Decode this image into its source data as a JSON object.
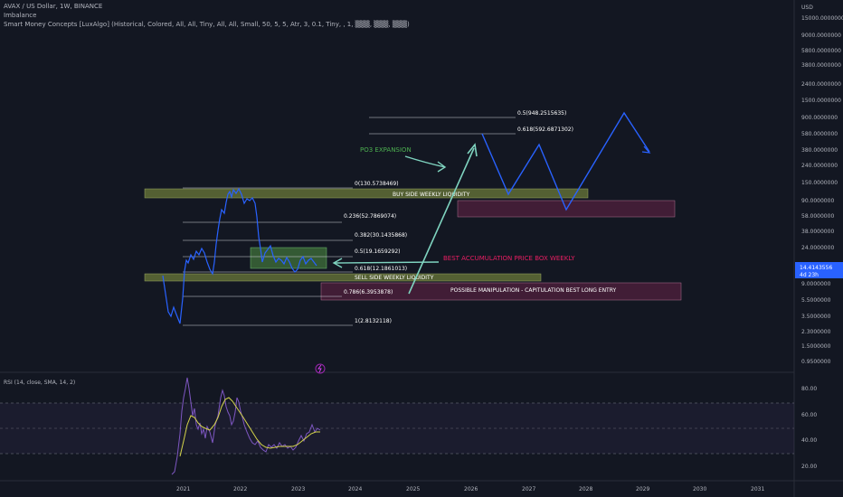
{
  "header": {
    "symbol_line": "AVAX / US Dollar, 1W, BINANCE",
    "indicator1": "Imbalance",
    "indicator2": "Smart Money Concepts [LuxAlgo] (Historical, Colored, All, All, Tiny, All, All, Small, 50, 5, 5, Atr, 3, 0.1, Tiny, , 1, ▒▒▒, ▒▒▒, ▒▒▒)"
  },
  "price_axis": {
    "currency": "USD",
    "ticks": [
      "15000.0000000",
      "9000.0000000",
      "5800.0000000",
      "3800.0000000",
      "2400.0000000",
      "1500.0000000",
      "900.0000000",
      "580.0000000",
      "380.0000000",
      "240.0000000",
      "150.0000000",
      "90.0000000",
      "58.0000000",
      "38.0000000",
      "24.0000000",
      "14.4143556",
      "9.0000000",
      "5.5000000",
      "3.5000000",
      "2.3000000",
      "1.5000000",
      "0.9500000"
    ],
    "current_price": "14.4143556",
    "countdown": "4d 23h"
  },
  "rsi": {
    "label": "RSI (14, close, SMA, 14, 2)",
    "ticks": [
      "80.00",
      "60.00",
      "40.00",
      "20.00"
    ]
  },
  "time_axis": {
    "labels": [
      "2021",
      "2022",
      "2023",
      "2024",
      "2025",
      "2026",
      "2027",
      "2028",
      "2029",
      "2030",
      "2031"
    ]
  },
  "fib": [
    {
      "label": "0(130.5738469)"
    },
    {
      "label": "0.236(52.7869074)"
    },
    {
      "label": "0.382(30.1435868)"
    },
    {
      "label": "0.5(19.1659292)"
    },
    {
      "label": "0.618(12.1861013)"
    },
    {
      "label": "0.786(6.3953878)"
    },
    {
      "label": "1(2.8132118)"
    }
  ],
  "projection_fib": [
    {
      "label": "0.5(948.2515635)"
    },
    {
      "label": "0.618(592.6871302)"
    }
  ],
  "annotations": {
    "buy_side": "BUY SIDE WEEKLY LIQUIDITY",
    "sell_side": "SELL SIDE WEEKLY LIQUIDITY",
    "manipulation": "POSSIBLE MANIPULATION - CAPITULATION BEST LONG ENTRY",
    "po3": "PO3 EXPANSION",
    "best_box": "BEST ACCUMULATION PRICE BOX WEEKLY"
  },
  "colors": {
    "background": "#131722",
    "price_line": "#2962ff",
    "rsi_line": "#7e57c2",
    "rsi_ma": "#d4d44a",
    "liquidity_zone": "#6b7a3a",
    "manipulation_zone": "#4a1f3a",
    "accumulation_box": "#3d6b3a",
    "po3_text": "#4caf50",
    "best_box_text": "#e91e63",
    "arrow": "#7fd4c0",
    "price_tag": "#2962ff"
  }
}
